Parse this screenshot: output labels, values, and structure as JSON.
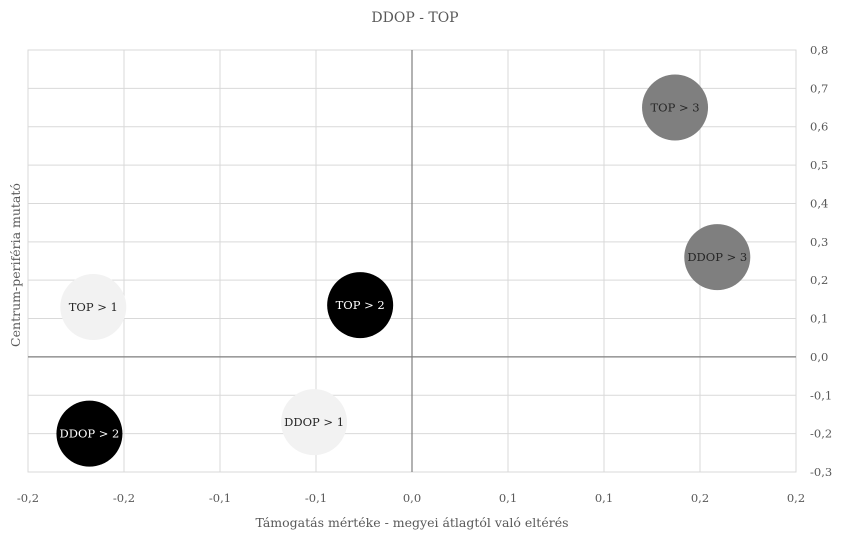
{
  "chart_data": {
    "type": "bubble",
    "title": "DDOP - TOP",
    "xlabel": "Támogatás mértéke - megyei átlagtól való eltérés",
    "ylabel": "Centrum-periféria mutató",
    "xlim": [
      -0.2,
      0.2
    ],
    "ylim": [
      -0.3,
      0.8
    ],
    "grid": true,
    "x_tick_values": [
      -0.2,
      -0.15,
      -0.1,
      -0.05,
      0,
      0.05,
      0.1,
      0.15,
      0.2
    ],
    "x_tick_labels": [
      "-0,2",
      "-0,2",
      "-0,1",
      "-0,1",
      "0,0",
      "0,1",
      "0,1",
      "0,2",
      "0,2"
    ],
    "y_tick_values": [
      -0.3,
      -0.2,
      -0.1,
      0,
      0.1,
      0.2,
      0.3,
      0.4,
      0.5,
      0.6,
      0.7,
      0.8
    ],
    "y_tick_labels": [
      "-0,3",
      "-0,2",
      "-0,1",
      "0,0",
      "0,1",
      "0,2",
      "0,3",
      "0,4",
      "0,5",
      "0,6",
      "0,7",
      "0,8"
    ],
    "y_axis_side": "right",
    "points": [
      {
        "label": "TOP > 3",
        "x": 0.137,
        "y": 0.65,
        "color": "#7f7f7f",
        "text_color": "#262626"
      },
      {
        "label": "DDOP > 3",
        "x": 0.159,
        "y": 0.26,
        "color": "#7f7f7f",
        "text_color": "#262626"
      },
      {
        "label": "TOP > 2",
        "x": -0.027,
        "y": 0.135,
        "color": "#000000",
        "text_color": "#ffffff"
      },
      {
        "label": "TOP > 1",
        "x": -0.166,
        "y": 0.13,
        "color": "#f2f2f2",
        "text_color": "#262626"
      },
      {
        "label": "DDOP > 2",
        "x": -0.168,
        "y": -0.2,
        "color": "#000000",
        "text_color": "#ffffff"
      },
      {
        "label": "DDOP > 1",
        "x": -0.051,
        "y": -0.17,
        "color": "#f2f2f2",
        "text_color": "#262626"
      }
    ]
  }
}
